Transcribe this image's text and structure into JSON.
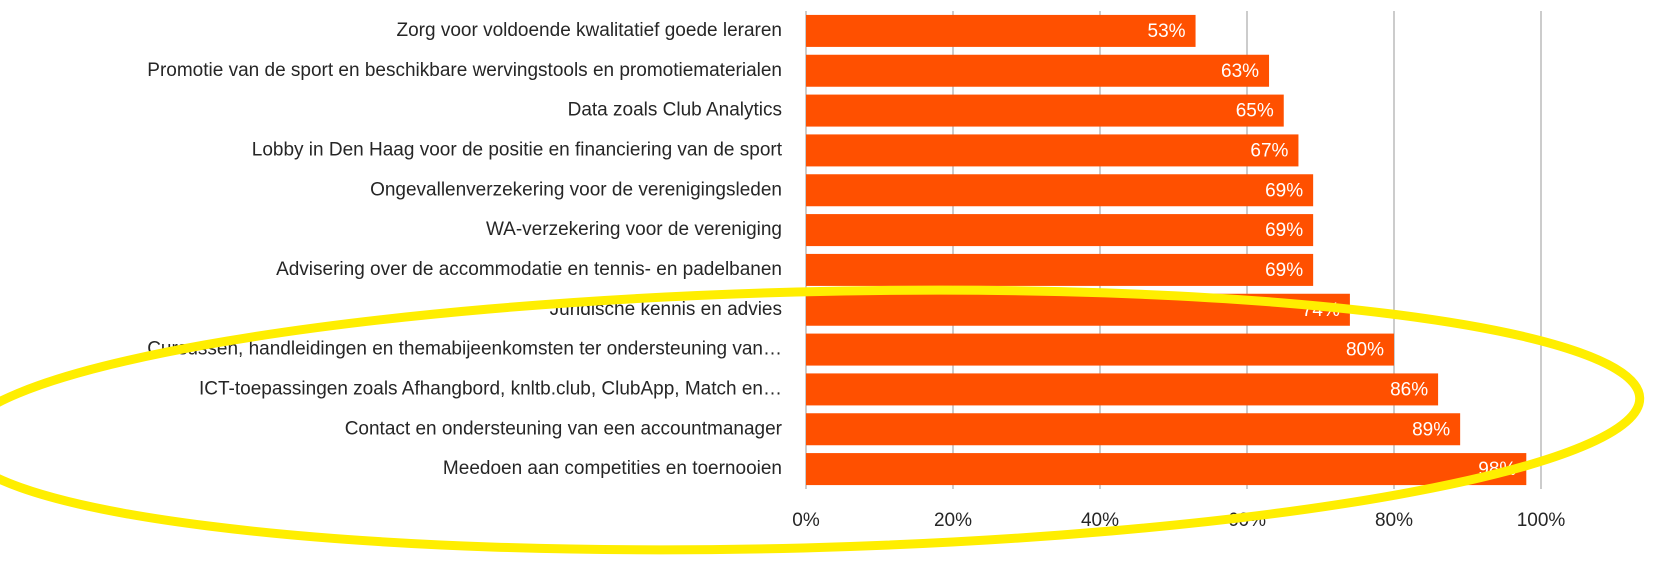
{
  "chart_data": {
    "type": "bar",
    "orientation": "horizontal",
    "categories": [
      "Zorg voor voldoende kwalitatief goede leraren",
      "Promotie van de sport en beschikbare wervingstools en promotiematerialen",
      "Data zoals Club Analytics",
      "Lobby in Den Haag voor de positie en financiering van de sport",
      "Ongevallenverzekering voor de verenigingsleden",
      "WA-verzekering voor de vereniging",
      "Advisering over de accommodatie en tennis- en padelbanen",
      "Juridische kennis en advies",
      "Cursussen, handleidingen en themabijeenkomsten ter ondersteuning van…",
      "ICT-toepassingen zoals Afhangbord, knltb.club, ClubApp, Match en…",
      "Contact en ondersteuning van een accountmanager",
      "Meedoen aan competities en toernooien"
    ],
    "values": [
      53,
      63,
      65,
      67,
      69,
      69,
      69,
      74,
      80,
      86,
      89,
      98
    ],
    "value_labels": [
      "53%",
      "63%",
      "65%",
      "67%",
      "69%",
      "69%",
      "69%",
      "74%",
      "80%",
      "86%",
      "89%",
      "98%"
    ],
    "color": "#ff5000",
    "xlim": [
      0,
      100
    ],
    "xticks": [
      {
        "value": 0,
        "label": "0%"
      },
      {
        "value": 20,
        "label": "20%"
      },
      {
        "value": 40,
        "label": "40%"
      },
      {
        "value": 60,
        "label": "60%"
      },
      {
        "value": 80,
        "label": "80%"
      },
      {
        "value": 100,
        "label": "100%"
      }
    ],
    "grid": true
  }
}
